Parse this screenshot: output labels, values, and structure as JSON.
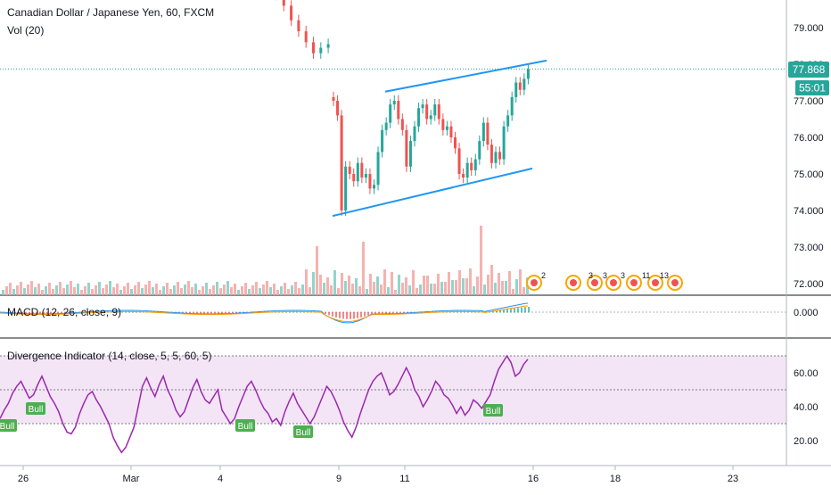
{
  "header": {
    "symbol_title": "Canadian Dollar / Japanese Yen, 60, FXCM",
    "volume_label": "Vol (20)"
  },
  "price_pane": {
    "last_price": "77.868",
    "countdown": "55:01",
    "y_ticks": [
      "79.000",
      "78.000",
      "77.000",
      "76.000",
      "75.000",
      "74.000",
      "73.000",
      "72.000"
    ],
    "bar_colors": {
      "up": "#26a69a",
      "down": "#ef5350"
    },
    "price_line_color": "#26a69a",
    "channel_color": "#2196f3"
  },
  "macd_pane": {
    "label": "MACD (12, 26, close, 9)",
    "y_ticks": [
      "0.000"
    ]
  },
  "rsi_pane": {
    "label": "Divergence Indicator (14, close, 5, 5, 60, 5)",
    "y_ticks": [
      "60.00",
      "40.00",
      "20.00"
    ],
    "line_color": "#9c27b0",
    "band_color": "#f3e5f5",
    "bull_labels": [
      "Bull",
      "Bull",
      "Bull",
      "Bull",
      "Bull"
    ],
    "bull_color": "#4caf50"
  },
  "time_axis": {
    "labels": [
      "26",
      "Mar",
      "4",
      "9",
      "11",
      "16",
      "18",
      "23"
    ]
  },
  "events": {
    "counts": [
      "2",
      "3",
      "3",
      "3",
      "11",
      "13"
    ]
  },
  "chart_data": {
    "type": "candlestick",
    "title": "Canadian Dollar / Japanese Yen, 60, FXCM",
    "ylim": [
      71.6,
      79.8
    ],
    "candle_closes_visible": {
      "early_segment_Mar5_6": [
        79.9,
        79.6,
        79.2,
        78.9,
        78.6,
        78.3,
        78.45,
        78.55
      ],
      "main_segment_Mar9_13": [
        77.0,
        76.6,
        74.0,
        75.2,
        75.0,
        74.8,
        75.3,
        74.9,
        75.0,
        74.6,
        74.7,
        75.6,
        76.2,
        76.4,
        76.9,
        77.0,
        76.5,
        76.2,
        75.2,
        75.9,
        76.3,
        76.8,
        76.9,
        76.5,
        76.6,
        76.9,
        76.5,
        76.2,
        76.3,
        76.0,
        75.7,
        75.0,
        74.9,
        75.3,
        75.1,
        75.4,
        75.9,
        76.4,
        75.8,
        75.3,
        75.6,
        75.4,
        76.3,
        76.6,
        77.1,
        77.5,
        77.3,
        77.6,
        77.868
      ]
    },
    "last_price": 77.868,
    "channel_upper": {
      "from_price": 77.25,
      "to_price": 78.1
    },
    "channel_lower": {
      "from_price": 73.85,
      "to_price": 75.15
    },
    "macd": {
      "ylim_zero_label": "0.000"
    },
    "rsi": {
      "ylim": [
        10,
        75
      ],
      "band": [
        30,
        70
      ],
      "mid": 50,
      "values": [
        33,
        38,
        42,
        48,
        52,
        55,
        50,
        45,
        47,
        53,
        58,
        52,
        46,
        42,
        37,
        30,
        25,
        24,
        28,
        36,
        42,
        47,
        49,
        44,
        40,
        35,
        30,
        22,
        17,
        13,
        16,
        22,
        28,
        40,
        52,
        57,
        51,
        46,
        53,
        58,
        50,
        45,
        38,
        34,
        37,
        44,
        51,
        56,
        49,
        44,
        42,
        46,
        50,
        38,
        34,
        30,
        33,
        40,
        46,
        52,
        55,
        50,
        44,
        39,
        36,
        31,
        33,
        29,
        37,
        43,
        48,
        42,
        38,
        34,
        30,
        34,
        40,
        46,
        52,
        49,
        44,
        38,
        31,
        26,
        22,
        28,
        36,
        43,
        50,
        55,
        58,
        60,
        54,
        47,
        49,
        53,
        58,
        63,
        58,
        50,
        46,
        40,
        44,
        49,
        55,
        52,
        47,
        45,
        41,
        36,
        40,
        35,
        38,
        44,
        42,
        39,
        43,
        47,
        55,
        62,
        66,
        70,
        66,
        58,
        60,
        65,
        68
      ]
    },
    "time_ticks": [
      "26",
      "Mar",
      "4",
      "9",
      "11",
      "16",
      "18",
      "23"
    ]
  }
}
